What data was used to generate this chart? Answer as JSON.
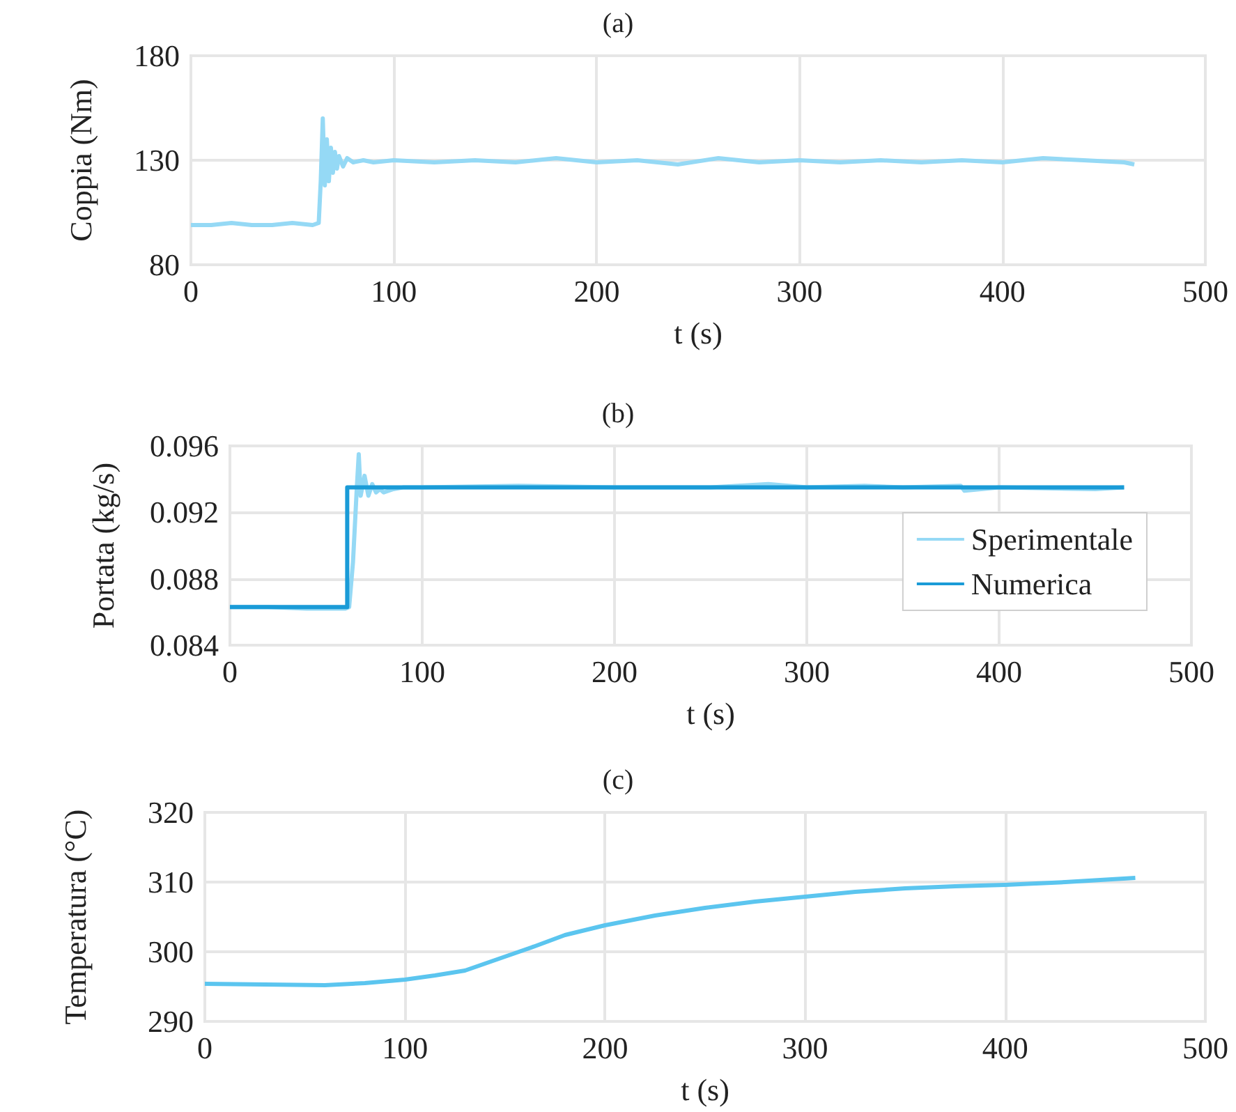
{
  "chart_data": [
    {
      "type": "line",
      "title": "(a)",
      "xlabel": "t (s)",
      "ylabel": "Coppia (Nm)",
      "xlim": [
        0,
        500
      ],
      "xticks": [
        0,
        100,
        200,
        300,
        400,
        500
      ],
      "ylim": [
        80,
        180
      ],
      "yticks": [
        80,
        130,
        180
      ],
      "grid": true,
      "series": [
        {
          "color": "#95d9f5",
          "x": [
            0,
            10,
            20,
            30,
            40,
            50,
            60,
            63,
            64,
            65,
            66,
            67,
            68,
            69,
            70,
            71,
            72,
            73,
            75,
            77,
            80,
            85,
            90,
            100,
            120,
            140,
            160,
            180,
            200,
            220,
            240,
            260,
            280,
            300,
            320,
            340,
            360,
            380,
            400,
            420,
            440,
            460,
            465
          ],
          "values": [
            99,
            99,
            100,
            99,
            99,
            100,
            99,
            100,
            120,
            150,
            118,
            140,
            120,
            136,
            124,
            134,
            126,
            132,
            127,
            131,
            129,
            130,
            129,
            130,
            129,
            130,
            129,
            131,
            129,
            130,
            128,
            131,
            129,
            130,
            129,
            130,
            129,
            130,
            129,
            131,
            130,
            129,
            128
          ]
        }
      ]
    },
    {
      "type": "line",
      "title": "(b)",
      "xlabel": "t (s)",
      "ylabel": "Portata (kg/s)",
      "xlim": [
        0,
        500
      ],
      "xticks": [
        0,
        100,
        200,
        300,
        400,
        500
      ],
      "ylim": [
        0.084,
        0.096
      ],
      "yticks": [
        0.084,
        0.088,
        0.092,
        0.096
      ],
      "grid": true,
      "legend": "right",
      "series": [
        {
          "name": "Sperimentale",
          "color": "#95d9f5",
          "x": [
            0,
            20,
            40,
            60,
            62,
            64,
            66,
            67,
            68,
            70,
            72,
            74,
            76,
            78,
            80,
            85,
            90,
            100,
            150,
            200,
            250,
            280,
            300,
            330,
            350,
            380,
            382,
            400,
            450,
            465
          ],
          "values": [
            0.0863,
            0.0863,
            0.0862,
            0.0862,
            0.0863,
            0.089,
            0.0935,
            0.0955,
            0.093,
            0.0942,
            0.093,
            0.0937,
            0.0932,
            0.0934,
            0.0932,
            0.0934,
            0.0935,
            0.0935,
            0.0936,
            0.0935,
            0.0935,
            0.0937,
            0.0935,
            0.0936,
            0.0935,
            0.0936,
            0.0933,
            0.0935,
            0.0934,
            0.0935
          ]
        },
        {
          "name": "Numerica",
          "color": "#1a9bd7",
          "x": [
            0,
            61,
            61,
            465
          ],
          "values": [
            0.0863,
            0.0863,
            0.0935,
            0.0935
          ]
        }
      ]
    },
    {
      "type": "line",
      "title": "(c)",
      "xlabel": "t (s)",
      "ylabel": "Temperatura (°C)",
      "xlim": [
        0,
        500
      ],
      "xticks": [
        0,
        100,
        200,
        300,
        400,
        500
      ],
      "ylim": [
        290,
        320
      ],
      "yticks": [
        290,
        300,
        310,
        320
      ],
      "grid": true,
      "series": [
        {
          "color": "#5bc5ef",
          "x": [
            0,
            30,
            60,
            80,
            100,
            115,
            130,
            150,
            165,
            180,
            200,
            225,
            250,
            275,
            300,
            325,
            350,
            375,
            400,
            430,
            465
          ],
          "values": [
            295.4,
            295.3,
            295.2,
            295.5,
            296.0,
            296.6,
            297.3,
            299.3,
            300.8,
            302.4,
            303.8,
            305.2,
            306.3,
            307.2,
            307.9,
            308.6,
            309.1,
            309.4,
            309.6,
            310.0,
            310.6
          ]
        }
      ]
    }
  ]
}
